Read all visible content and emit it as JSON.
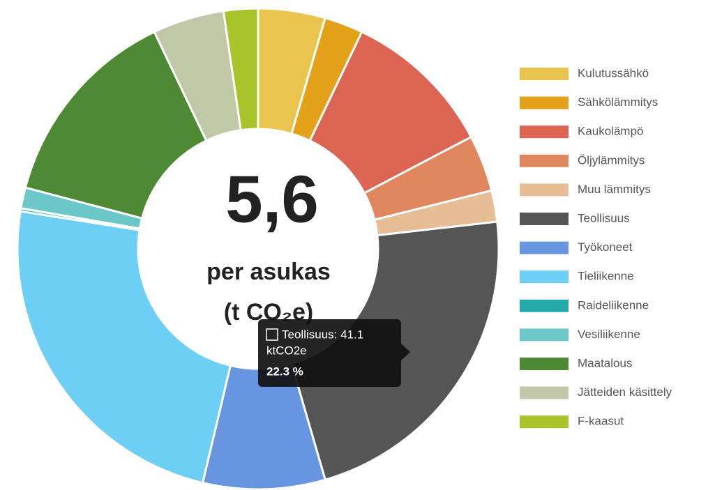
{
  "chart_data": {
    "type": "donut",
    "categories": [
      "Kulutussähkö",
      "Sähkölämmitys",
      "Kaukolämpö",
      "Öljylämmitys",
      "Muu lämmitys",
      "Teollisuus",
      "Työkoneet",
      "Tieliikenne",
      "Raideliikenne",
      "Vesiliikenne",
      "Maatalous",
      "Jätteiden käsittely",
      "F-kaasut"
    ],
    "values": [
      4.5,
      2.6,
      10.2,
      3.8,
      2.1,
      22.3,
      8.2,
      23.8,
      0.2,
      1.4,
      13.8,
      4.8,
      2.3
    ],
    "colors": [
      "#e9c44e",
      "#e3a21a",
      "#dc6452",
      "#e08760",
      "#e6bd95",
      "#555555",
      "#6795e0",
      "#6ecff5",
      "#23aaaa",
      "#6cc8c8",
      "#4e8a34",
      "#c0c8a8",
      "#a8c42a"
    ],
    "center_value": "5,6",
    "center_label": "per asukas",
    "center_unit": "(t CO₂e)",
    "tooltip": {
      "line1": "Teollisuus: 41.1",
      "line2": "ktCO2e",
      "line3": "22.3 %"
    },
    "legend": "right"
  }
}
